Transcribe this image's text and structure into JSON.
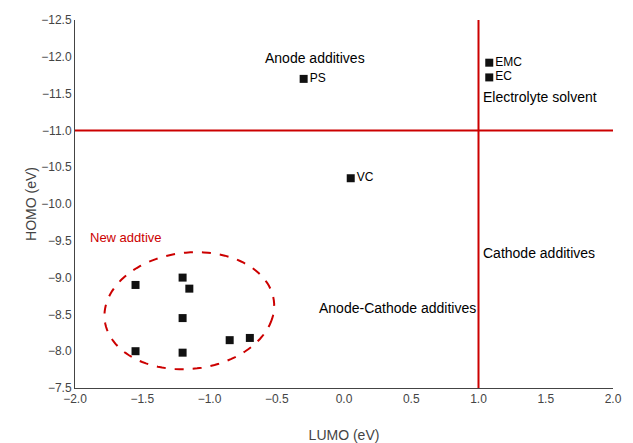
{
  "chart_data": {
    "type": "scatter",
    "xlabel": "LUMO (eV)",
    "ylabel": "HOMO (eV)",
    "xlim": [
      -2.0,
      2.0
    ],
    "ylim": [
      -7.5,
      -12.5
    ],
    "xticks": [
      {
        "value": -2.0,
        "label": "−2.0"
      },
      {
        "value": -1.5,
        "label": "−1.5"
      },
      {
        "value": -1.0,
        "label": "−1.0"
      },
      {
        "value": -0.5,
        "label": "−0.5"
      },
      {
        "value": 0.0,
        "label": "0.0"
      },
      0.5,
      {
        "value": 1.0,
        "label": "1.0"
      },
      1.5,
      {
        "value": 2.0,
        "label": "2.0"
      }
    ],
    "yticks": [
      {
        "value": -12.5,
        "label": "−12.5"
      },
      {
        "value": -12.0,
        "label": "−12.0"
      },
      {
        "value": -11.5,
        "label": "−11.5"
      },
      {
        "value": -11.0,
        "label": "−11.0"
      },
      {
        "value": -10.5,
        "label": "−10.5"
      },
      {
        "value": -10.0,
        "label": "−10.0"
      },
      {
        "value": -9.5,
        "label": "−9.5"
      },
      {
        "value": -9.0,
        "label": "−9.0"
      },
      {
        "value": -8.5,
        "label": "−8.5"
      },
      {
        "value": -8.0,
        "label": "−8.0"
      },
      {
        "value": -7.5,
        "label": "−7.5"
      }
    ],
    "grid": false,
    "series": [
      {
        "x": [
          -0.3,
          0.05,
          1.08,
          1.08
        ],
        "values": [
          -11.7,
          -10.35,
          -11.72,
          -11.92
        ],
        "point_labels": [
          "PS",
          "VC",
          "EC",
          "EMC"
        ],
        "color": "#111111",
        "marker": "square"
      },
      {
        "x": [
          -1.55,
          -1.2,
          -1.15,
          -1.2,
          -1.55,
          -1.2,
          -0.85,
          -0.7
        ],
        "values": [
          -8.9,
          -9.0,
          -8.85,
          -8.45,
          -8.0,
          -7.98,
          -8.15,
          -8.18
        ],
        "color": "#111111",
        "marker": "square"
      }
    ],
    "reference_lines": [
      {
        "axis": "y",
        "value": -11.0,
        "color": "#cc0000"
      },
      {
        "axis": "x",
        "value": 1.0,
        "color": "#cc0000"
      }
    ],
    "ellipse": {
      "x": -1.15,
      "y": -8.55,
      "width": 1.25,
      "height": 1.6,
      "angle": 10,
      "color": "#cc0000",
      "line_style": "dashed"
    },
    "new_additive_label": {
      "x": -1.9,
      "y": -9.55,
      "text": "New addtive",
      "color": "#cc0000"
    },
    "region_labels": [
      {
        "x": -0.6,
        "y": -12.15,
        "text": "Anode additives"
      },
      {
        "x": 1.02,
        "y": -11.62,
        "text": "Electrolyte solvent"
      },
      {
        "x": 1.02,
        "y": -9.5,
        "text": "Cathode additives"
      },
      {
        "x": -0.2,
        "y": -8.75,
        "text": "Anode-Cathode additives"
      }
    ]
  }
}
